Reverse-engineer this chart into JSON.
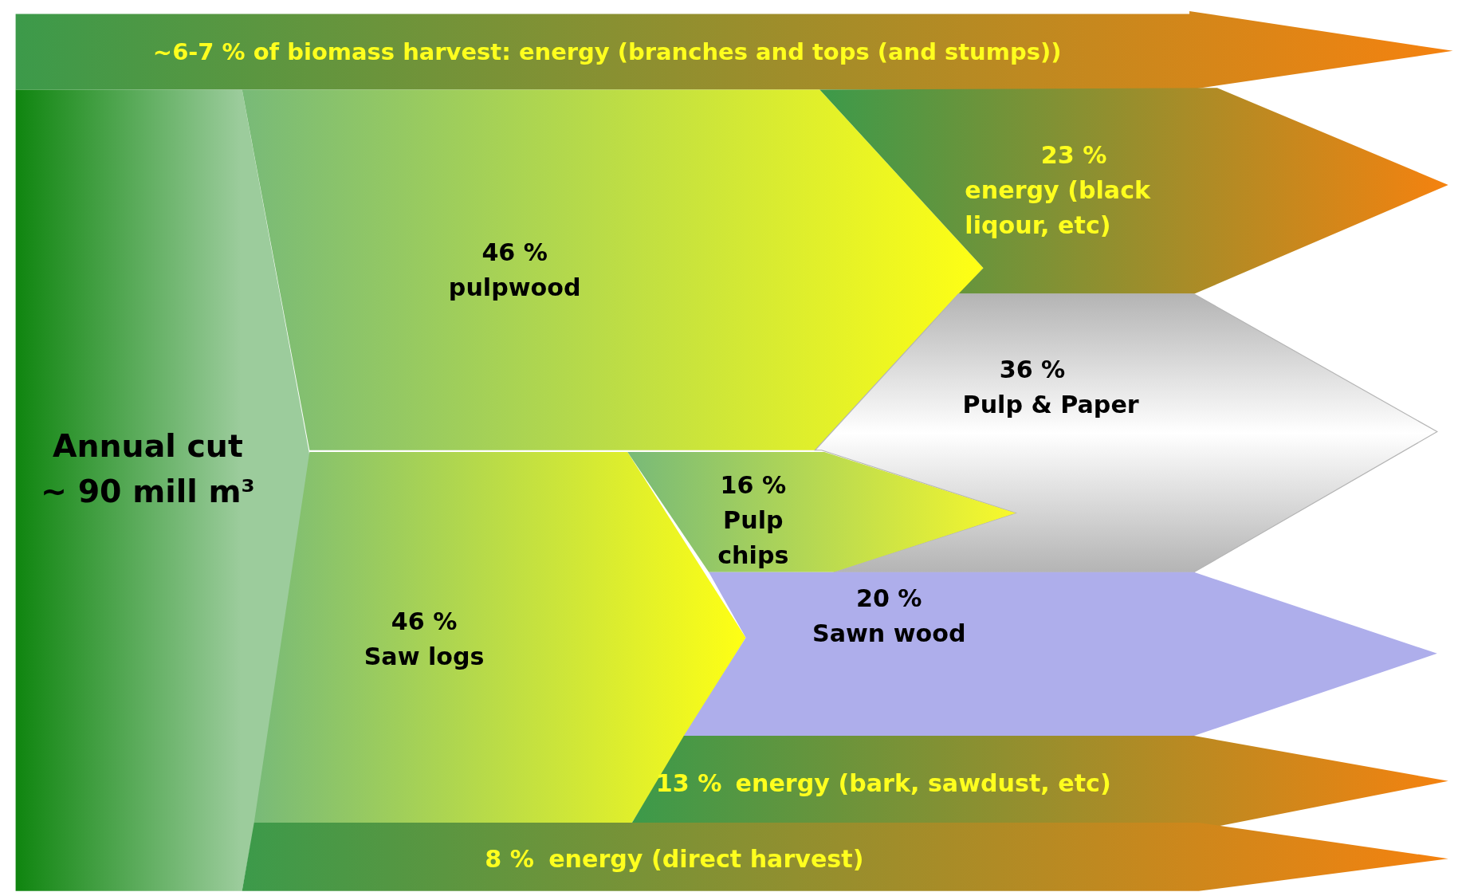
{
  "chart_data": {
    "type": "other",
    "categories": [
      "pulpwood",
      "Saw logs",
      "energy (black liqour, etc)",
      "Pulp & Paper",
      "Pulp chips",
      "Sawn wood",
      "energy (bark, sawdust, etc)",
      "energy (direct harvest)"
    ],
    "values": [
      46,
      46,
      23,
      36,
      16,
      20,
      13,
      8
    ],
    "value_labels": [
      "46 %",
      "46 %",
      "23 %",
      "36 %",
      "16 %",
      "20 %",
      "13 %",
      "8 %"
    ],
    "colors": [
      "#ffff14",
      "#ffff14",
      "#f5820f",
      "#b4b4b4",
      "#f9f92a",
      "#aeaeeb",
      "#f5820f",
      "#f5820f"
    ],
    "annotations": [
      "~6-7 % of biomass harvest: energy (branches and tops (and stumps))",
      "Annual cut\n~ 90 mill m³"
    ]
  }
}
